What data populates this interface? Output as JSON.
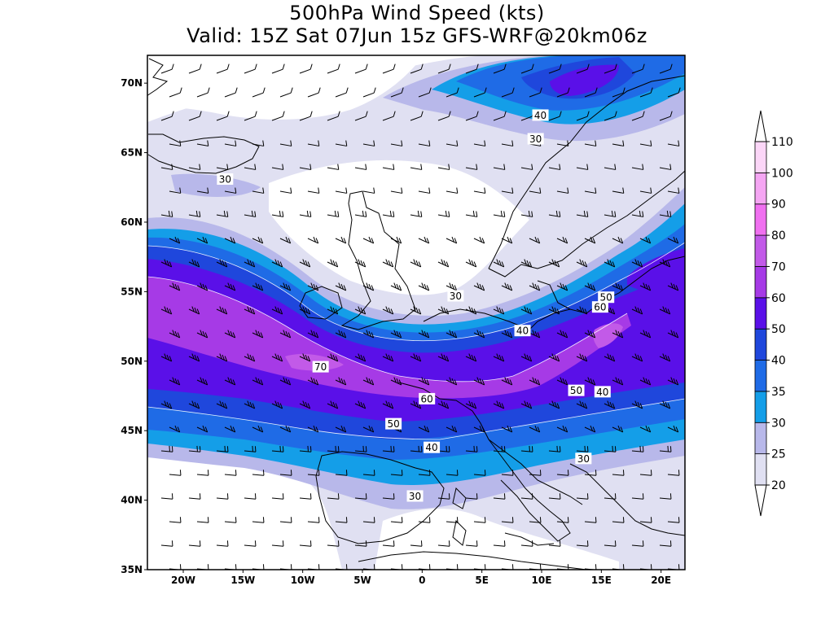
{
  "title": {
    "line1": "500hPa Wind Speed (kts)",
    "line2": "Valid: 15Z Sat 07Jun 15z GFS-WRF@20km06z"
  },
  "map": {
    "lat_range": [
      35,
      72
    ],
    "lon_range": [
      -23,
      22
    ],
    "lat_ticks": [
      {
        "lat": 70,
        "label": "70N"
      },
      {
        "lat": 65,
        "label": "65N"
      },
      {
        "lat": 60,
        "label": "60N"
      },
      {
        "lat": 55,
        "label": "55N"
      },
      {
        "lat": 50,
        "label": "50N"
      },
      {
        "lat": 45,
        "label": "45N"
      },
      {
        "lat": 40,
        "label": "40N"
      },
      {
        "lat": 35,
        "label": "35N"
      }
    ],
    "lon_ticks": [
      {
        "lon": -20,
        "label": "20W"
      },
      {
        "lon": -15,
        "label": "15W"
      },
      {
        "lon": -10,
        "label": "10W"
      },
      {
        "lon": -5,
        "label": "5W"
      },
      {
        "lon": 0,
        "label": "0"
      },
      {
        "lon": 5,
        "label": "5E"
      },
      {
        "lon": 10,
        "label": "10E"
      },
      {
        "lon": 15,
        "label": "15E"
      },
      {
        "lon": 20,
        "label": "20E"
      }
    ],
    "contour_labels": [
      {
        "text": "30",
        "lon": -16.5,
        "lat": 63.1
      },
      {
        "text": "40",
        "lon": 9.9,
        "lat": 67.7
      },
      {
        "text": "30",
        "lon": 9.5,
        "lat": 66.0
      },
      {
        "text": "30",
        "lon": 2.8,
        "lat": 54.7
      },
      {
        "text": "50",
        "lon": 15.4,
        "lat": 54.6
      },
      {
        "text": "60",
        "lon": 14.9,
        "lat": 53.9
      },
      {
        "text": "40",
        "lon": 8.4,
        "lat": 52.2
      },
      {
        "text": "70",
        "lon": -8.5,
        "lat": 49.6
      },
      {
        "text": "60",
        "lon": 0.4,
        "lat": 47.3
      },
      {
        "text": "50",
        "lon": 12.9,
        "lat": 47.9
      },
      {
        "text": "40",
        "lon": 15.1,
        "lat": 47.8
      },
      {
        "text": "50",
        "lon": -2.4,
        "lat": 45.5
      },
      {
        "text": "40",
        "lon": 0.8,
        "lat": 43.8
      },
      {
        "text": "30",
        "lon": 13.5,
        "lat": 43.0
      },
      {
        "text": "30",
        "lon": -0.6,
        "lat": 40.3
      }
    ]
  },
  "colorbar": {
    "unit": "kts",
    "levels": [
      {
        "value": "20",
        "color": "#e0e0f2"
      },
      {
        "value": "25",
        "color": "#b8b8ea"
      },
      {
        "value": "30",
        "color": "#149ee8"
      },
      {
        "value": "35",
        "color": "#1f6be6"
      },
      {
        "value": "40",
        "color": "#1f47dc"
      },
      {
        "value": "50",
        "color": "#5a10e8"
      },
      {
        "value": "60",
        "color": "#a63ae6"
      },
      {
        "value": "70",
        "color": "#c25ae8"
      },
      {
        "value": "80",
        "color": "#f070f0"
      },
      {
        "value": "90",
        "color": "#f5a6f3"
      },
      {
        "value": "100",
        "color": "#fbd6f7"
      },
      {
        "value": "110",
        "color": "#ffffff"
      }
    ]
  }
}
